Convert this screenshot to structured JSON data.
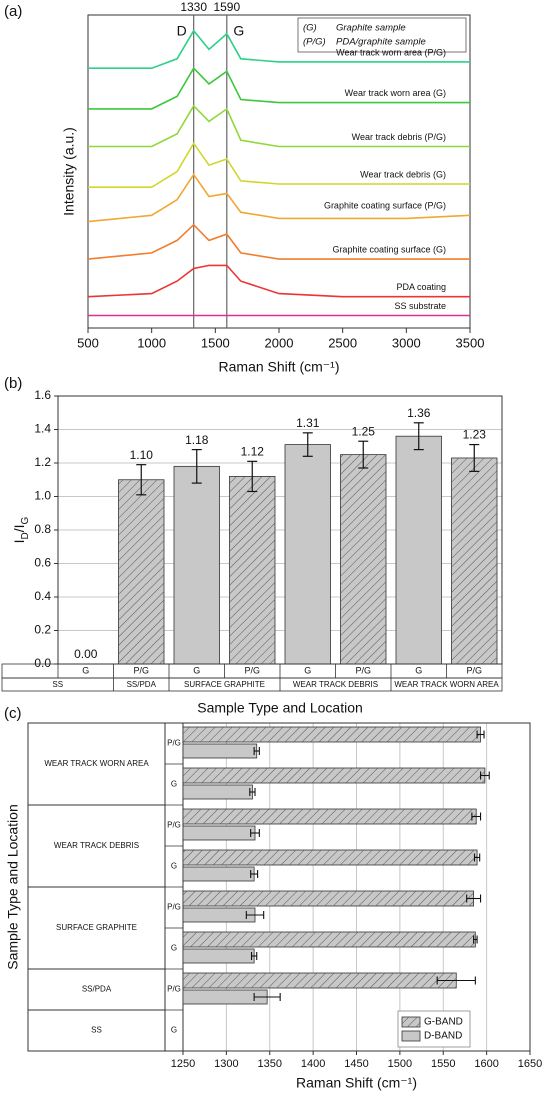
{
  "chart_data": [
    {
      "type": "line",
      "panel": "(a)",
      "xlabel": "Raman Shift (cm⁻¹)",
      "ylabel": "Intensity (a.u.)",
      "x": [
        500,
        1000,
        1200,
        1330,
        1450,
        1590,
        1700,
        2000,
        2500,
        3000,
        3500
      ],
      "xlim": [
        500,
        3500
      ],
      "xticks": [
        500,
        1000,
        1500,
        2000,
        2500,
        3000,
        3500
      ],
      "ylim": [
        0,
        100
      ],
      "reference_lines": [
        {
          "value": 1330,
          "label": "D"
        },
        {
          "value": 1590,
          "label": "G"
        }
      ],
      "notes": [
        {
          "key": "(G)",
          "text": "Graphite sample"
        },
        {
          "key": "(P/G)",
          "text": "PDA/graphite sample"
        }
      ],
      "series": [
        {
          "name": "Wear track worn area (P/G)",
          "color": "#2fd08a",
          "values": [
            83,
            83,
            86,
            95,
            89,
            94,
            86,
            85,
            85,
            85,
            85
          ]
        },
        {
          "name": "Wear track worn area (G)",
          "color": "#3cc83c",
          "values": [
            70,
            70,
            74,
            83,
            78,
            82,
            73,
            72,
            72,
            72,
            72
          ]
        },
        {
          "name": "Wear track debris (P/G)",
          "color": "#8fd83a",
          "values": [
            58,
            58,
            62,
            71,
            66,
            70,
            60,
            58,
            58,
            58,
            58
          ]
        },
        {
          "name": "Wear track debris (G)",
          "color": "#d2d62a",
          "values": [
            45,
            45,
            50,
            59,
            52,
            54,
            47,
            46,
            46,
            46,
            46
          ]
        },
        {
          "name": "Graphite coating surface (P/G)",
          "color": "#f0a830",
          "values": [
            34,
            36,
            41,
            49,
            42,
            43,
            37,
            35,
            35,
            35,
            36
          ]
        },
        {
          "name": "Graphite coating surface (G)",
          "color": "#f07e2e",
          "values": [
            22,
            24,
            28,
            33,
            28,
            30,
            24,
            22,
            22,
            22,
            22
          ]
        },
        {
          "name": "PDA coating",
          "color": "#ec3434",
          "values": [
            10,
            11,
            15,
            19,
            20,
            20,
            15,
            11,
            10,
            10,
            10
          ]
        },
        {
          "name": "SS substrate",
          "color": "#e0308f",
          "values": [
            4,
            4,
            4,
            4,
            4,
            4,
            4,
            4,
            4,
            4,
            4
          ]
        }
      ]
    },
    {
      "type": "bar",
      "panel": "(b)",
      "ylabel": [
        "I",
        "D",
        "/I",
        "G"
      ],
      "xlabel": "Sample Type and Location",
      "categories": [
        "G",
        "P/G",
        "G",
        "P/G",
        "G",
        "P/G",
        "G",
        "P/G"
      ],
      "groups": [
        "SS",
        "SS/PDA",
        "SURFACE GRAPHITE",
        null,
        "WEAR TRACK DEBRIS",
        null,
        "WEAR TRACK WORN AREA",
        null
      ],
      "values": [
        0,
        1.1,
        1.18,
        1.12,
        1.31,
        1.25,
        1.36,
        1.23
      ],
      "value_labels": [
        "0.00",
        "1.10",
        "1.18",
        "1.12",
        "1.31",
        "1.25",
        "1.36",
        "1.23"
      ],
      "errors": [
        null,
        0.09,
        0.1,
        0.09,
        0.07,
        0.08,
        0.08,
        0.08
      ],
      "patterns": [
        "plain",
        "hatch",
        "plain",
        "hatch",
        "plain",
        "hatch",
        "plain",
        "hatch"
      ],
      "color": "#c8c8c8",
      "ylim": [
        0,
        1.6
      ],
      "yticks": [
        {
          "value": 0,
          "label": "0.0"
        },
        0.2,
        0.4,
        0.6,
        0.8,
        {
          "value": 1,
          "label": "1.0"
        },
        1.2,
        1.4,
        1.6
      ],
      "grid": true
    },
    {
      "type": "barh",
      "panel": "(c)",
      "xlabel": "Raman Shift (cm⁻¹)",
      "ylabel": "Sample Type and Location",
      "categories": [
        "P/G",
        "G",
        "P/G",
        "G",
        "P/G",
        "G",
        "P/G",
        "G"
      ],
      "groups": [
        "WEAR TRACK WORN AREA",
        null,
        "WEAR TRACK DEBRIS",
        null,
        "SURFACE GRAPHITE",
        null,
        "SS/PDA",
        "SS"
      ],
      "series": [
        {
          "name": "G-BAND",
          "pattern": "hatch",
          "values": [
            1593,
            1598,
            1588,
            1589,
            1585,
            1587,
            1565,
            null
          ],
          "errors": [
            4,
            5,
            5,
            3,
            8,
            2,
            22,
            null
          ]
        },
        {
          "name": "D-BAND",
          "pattern": "plain",
          "values": [
            1335,
            1330,
            1333,
            1332,
            1333,
            1332,
            1347,
            null
          ],
          "errors": [
            3,
            3,
            5,
            4,
            10,
            3,
            15,
            null
          ]
        }
      ],
      "color": "#c8c8c8",
      "xlim": [
        1250,
        1650
      ],
      "xticks": [
        1250,
        1300,
        1350,
        1400,
        1450,
        1500,
        1550,
        1600,
        1650
      ],
      "grid": true,
      "legend": "lower right"
    }
  ]
}
